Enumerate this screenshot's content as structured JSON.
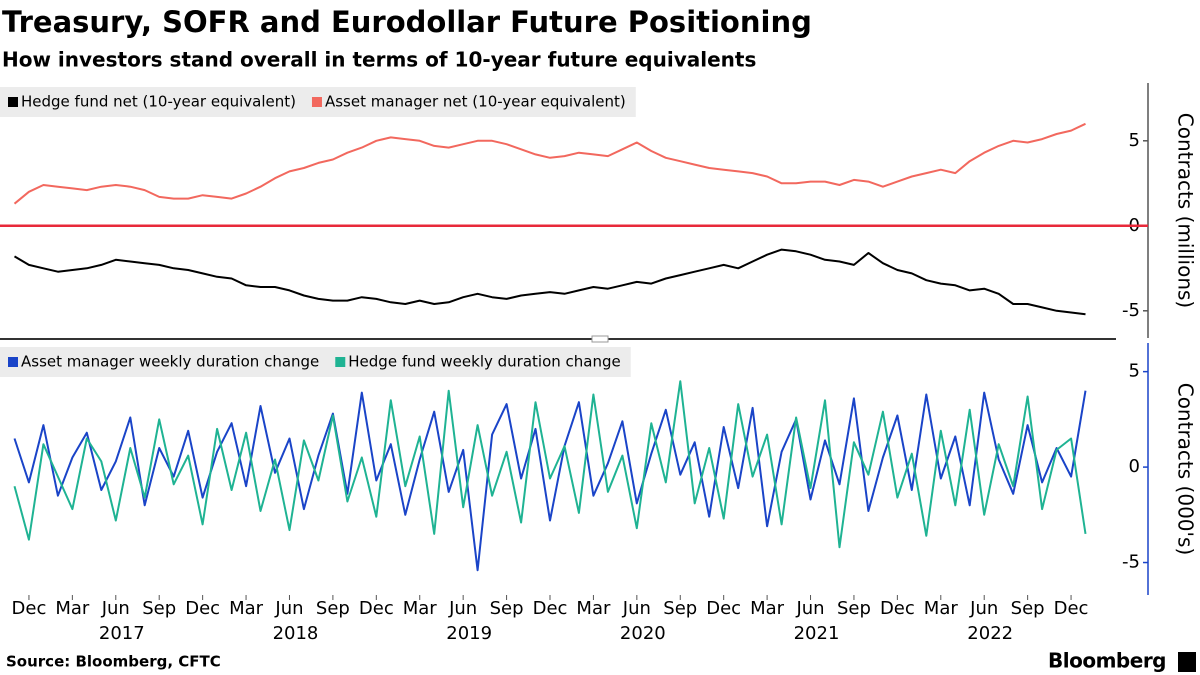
{
  "header": {
    "title": "Treasury, SOFR and Eurodollar Future Positioning",
    "subtitle": "How investors stand overall in terms of 10-year future equivalents"
  },
  "chart_data": [
    {
      "type": "line",
      "y_label": "Contracts (millions)",
      "legend": "top-left",
      "zero_line_color": "#e8293a",
      "x": [
        "2016-11",
        "2016-12",
        "2017-01",
        "2017-02",
        "2017-03",
        "2017-04",
        "2017-05",
        "2017-06",
        "2017-07",
        "2017-08",
        "2017-09",
        "2017-10",
        "2017-11",
        "2017-12",
        "2018-01",
        "2018-02",
        "2018-03",
        "2018-04",
        "2018-05",
        "2018-06",
        "2018-07",
        "2018-08",
        "2018-09",
        "2018-10",
        "2018-11",
        "2018-12",
        "2019-01",
        "2019-02",
        "2019-03",
        "2019-04",
        "2019-05",
        "2019-06",
        "2019-07",
        "2019-08",
        "2019-09",
        "2019-10",
        "2019-11",
        "2019-12",
        "2020-01",
        "2020-02",
        "2020-03",
        "2020-04",
        "2020-05",
        "2020-06",
        "2020-07",
        "2020-08",
        "2020-09",
        "2020-10",
        "2020-11",
        "2020-12",
        "2021-01",
        "2021-02",
        "2021-03",
        "2021-04",
        "2021-05",
        "2021-06",
        "2021-07",
        "2021-08",
        "2021-09",
        "2021-10",
        "2021-11",
        "2021-12",
        "2022-01",
        "2022-02",
        "2022-03",
        "2022-04",
        "2022-05",
        "2022-06",
        "2022-07",
        "2022-08",
        "2022-09",
        "2022-10",
        "2022-11",
        "2022-12",
        "2023-01"
      ],
      "xlim": [
        "2016-10",
        "2023-02"
      ],
      "ylim": [
        -6.6,
        8.4
      ],
      "yticks": [
        -5,
        0,
        5
      ],
      "series": [
        {
          "name": "Hedge fund net (10-year equivalent)",
          "color": "#000000",
          "values": [
            -1.8,
            -2.3,
            -2.5,
            -2.7,
            -2.6,
            -2.5,
            -2.3,
            -2.0,
            -2.1,
            -2.2,
            -2.3,
            -2.5,
            -2.6,
            -2.8,
            -3.0,
            -3.1,
            -3.5,
            -3.6,
            -3.6,
            -3.8,
            -4.1,
            -4.3,
            -4.4,
            -4.4,
            -4.2,
            -4.3,
            -4.5,
            -4.6,
            -4.4,
            -4.6,
            -4.5,
            -4.2,
            -4.0,
            -4.2,
            -4.3,
            -4.1,
            -4.0,
            -3.9,
            -4.0,
            -3.8,
            -3.6,
            -3.7,
            -3.5,
            -3.3,
            -3.4,
            -3.1,
            -2.9,
            -2.7,
            -2.5,
            -2.3,
            -2.5,
            -2.1,
            -1.7,
            -1.4,
            -1.5,
            -1.7,
            -2.0,
            -2.1,
            -2.3,
            -1.6,
            -2.2,
            -2.6,
            -2.8,
            -3.2,
            -3.4,
            -3.5,
            -3.8,
            -3.7,
            -4.0,
            -4.6,
            -4.6,
            -4.8,
            -5.0,
            -5.1,
            -5.2
          ]
        },
        {
          "name": "Asset manager net (10-year equivalent)",
          "color": "#f2685e",
          "values": [
            1.3,
            2.0,
            2.4,
            2.3,
            2.2,
            2.1,
            2.3,
            2.4,
            2.3,
            2.1,
            1.7,
            1.6,
            1.6,
            1.8,
            1.7,
            1.6,
            1.9,
            2.3,
            2.8,
            3.2,
            3.4,
            3.7,
            3.9,
            4.3,
            4.6,
            5.0,
            5.2,
            5.1,
            5.0,
            4.7,
            4.6,
            4.8,
            5.0,
            5.0,
            4.8,
            4.5,
            4.2,
            4.0,
            4.1,
            4.3,
            4.2,
            4.1,
            4.5,
            4.9,
            4.4,
            4.0,
            3.8,
            3.6,
            3.4,
            3.3,
            3.2,
            3.1,
            2.9,
            2.5,
            2.5,
            2.6,
            2.6,
            2.4,
            2.7,
            2.6,
            2.3,
            2.6,
            2.9,
            3.1,
            3.3,
            3.1,
            3.8,
            4.3,
            4.7,
            5.0,
            4.9,
            5.1,
            5.4,
            5.6,
            6.0
          ]
        }
      ]
    },
    {
      "type": "line",
      "y_label": "Contracts (000's)",
      "legend": "top-left",
      "axis_color": "#1a44c8",
      "x": [
        "2016-11",
        "2016-12",
        "2017-01",
        "2017-02",
        "2017-03",
        "2017-04",
        "2017-05",
        "2017-06",
        "2017-07",
        "2017-08",
        "2017-09",
        "2017-10",
        "2017-11",
        "2017-12",
        "2018-01",
        "2018-02",
        "2018-03",
        "2018-04",
        "2018-05",
        "2018-06",
        "2018-07",
        "2018-08",
        "2018-09",
        "2018-10",
        "2018-11",
        "2018-12",
        "2019-01",
        "2019-02",
        "2019-03",
        "2019-04",
        "2019-05",
        "2019-06",
        "2019-07",
        "2019-08",
        "2019-09",
        "2019-10",
        "2019-11",
        "2019-12",
        "2020-01",
        "2020-02",
        "2020-03",
        "2020-04",
        "2020-05",
        "2020-06",
        "2020-07",
        "2020-08",
        "2020-09",
        "2020-10",
        "2020-11",
        "2020-12",
        "2021-01",
        "2021-02",
        "2021-03",
        "2021-04",
        "2021-05",
        "2021-06",
        "2021-07",
        "2021-08",
        "2021-09",
        "2021-10",
        "2021-11",
        "2021-12",
        "2022-01",
        "2022-02",
        "2022-03",
        "2022-04",
        "2022-05",
        "2022-06",
        "2022-07",
        "2022-08",
        "2022-09",
        "2022-10",
        "2022-11",
        "2022-12",
        "2023-01"
      ],
      "xlim": [
        "2016-10",
        "2023-02"
      ],
      "xticks": [
        {
          "value": "2016-12",
          "label": "Dec"
        },
        {
          "value": "2017-03",
          "label": "Mar"
        },
        {
          "value": "2017-06",
          "label": "Jun"
        },
        {
          "value": "2017-09",
          "label": "Sep"
        },
        {
          "value": "2017-12",
          "label": "Dec"
        },
        {
          "value": "2018-03",
          "label": "Mar"
        },
        {
          "value": "2018-06",
          "label": "Jun"
        },
        {
          "value": "2018-09",
          "label": "Sep"
        },
        {
          "value": "2018-12",
          "label": "Dec"
        },
        {
          "value": "2019-03",
          "label": "Mar"
        },
        {
          "value": "2019-06",
          "label": "Jun"
        },
        {
          "value": "2019-09",
          "label": "Sep"
        },
        {
          "value": "2019-12",
          "label": "Dec"
        },
        {
          "value": "2020-03",
          "label": "Mar"
        },
        {
          "value": "2020-06",
          "label": "Jun"
        },
        {
          "value": "2020-09",
          "label": "Sep"
        },
        {
          "value": "2020-12",
          "label": "Dec"
        },
        {
          "value": "2021-03",
          "label": "Mar"
        },
        {
          "value": "2021-06",
          "label": "Jun"
        },
        {
          "value": "2021-09",
          "label": "Sep"
        },
        {
          "value": "2021-12",
          "label": "Dec"
        },
        {
          "value": "2022-03",
          "label": "Mar"
        },
        {
          "value": "2022-06",
          "label": "Jun"
        },
        {
          "value": "2022-09",
          "label": "Sep"
        },
        {
          "value": "2022-12",
          "label": "Dec"
        }
      ],
      "xyear_ticks": [
        {
          "value": "2017-06",
          "label": "2017"
        },
        {
          "value": "2018-06",
          "label": "2018"
        },
        {
          "value": "2019-06",
          "label": "2019"
        },
        {
          "value": "2020-06",
          "label": "2020"
        },
        {
          "value": "2021-06",
          "label": "2021"
        },
        {
          "value": "2022-06",
          "label": "2022"
        }
      ],
      "ylim": [
        -6.7,
        6.5
      ],
      "yticks": [
        -5,
        0,
        5
      ],
      "series": [
        {
          "name": "Asset manager weekly duration change",
          "color": "#1a44c8",
          "values": [
            1.5,
            -0.8,
            2.2,
            -1.5,
            0.5,
            1.8,
            -1.2,
            0.3,
            2.6,
            -2.0,
            1.0,
            -0.5,
            1.9,
            -1.6,
            0.8,
            2.3,
            -1.0,
            3.2,
            -0.3,
            1.5,
            -2.2,
            0.6,
            2.8,
            -1.4,
            3.9,
            -0.7,
            1.2,
            -2.5,
            0.4,
            2.9,
            -1.3,
            0.9,
            -5.4,
            1.7,
            3.3,
            -0.6,
            2.0,
            -2.8,
            1.1,
            3.4,
            -1.5,
            0.2,
            2.4,
            -1.9,
            0.7,
            3.0,
            -0.4,
            1.3,
            -2.6,
            2.1,
            -1.1,
            3.1,
            -3.1,
            0.8,
            2.5,
            -1.7,
            1.4,
            -0.9,
            3.6,
            -2.3,
            0.5,
            2.7,
            -1.2,
            3.8,
            -0.6,
            1.6,
            -2.0,
            3.9,
            0.4,
            -1.4,
            2.2,
            -0.8,
            1.0,
            -0.5,
            4.0
          ]
        },
        {
          "name": "Hedge fund weekly duration change",
          "color": "#1fb393",
          "values": [
            -1.0,
            -3.8,
            1.2,
            -0.5,
            -2.2,
            1.5,
            0.3,
            -2.8,
            1.0,
            -1.6,
            2.5,
            -0.9,
            0.6,
            -3.0,
            2.0,
            -1.2,
            1.8,
            -2.3,
            0.4,
            -3.3,
            1.4,
            -0.7,
            2.7,
            -1.8,
            0.5,
            -2.6,
            3.5,
            -1.0,
            1.6,
            -3.5,
            4.0,
            -2.1,
            2.2,
            -1.5,
            0.8,
            -2.9,
            3.4,
            -0.6,
            1.1,
            -2.4,
            3.8,
            -1.3,
            0.6,
            -3.2,
            2.3,
            -0.8,
            4.5,
            -1.9,
            1.0,
            -2.7,
            3.3,
            -0.5,
            1.7,
            -3.0,
            2.6,
            -1.1,
            3.5,
            -4.2,
            1.3,
            -0.4,
            2.9,
            -1.6,
            0.7,
            -3.6,
            1.9,
            -2.0,
            3.0,
            -2.5,
            1.2,
            -1.0,
            3.7,
            -2.2,
            0.9,
            1.5,
            -3.5
          ]
        }
      ]
    }
  ],
  "footer": {
    "source": "Source: Bloomberg, CFTC",
    "brand": "Bloomberg"
  }
}
